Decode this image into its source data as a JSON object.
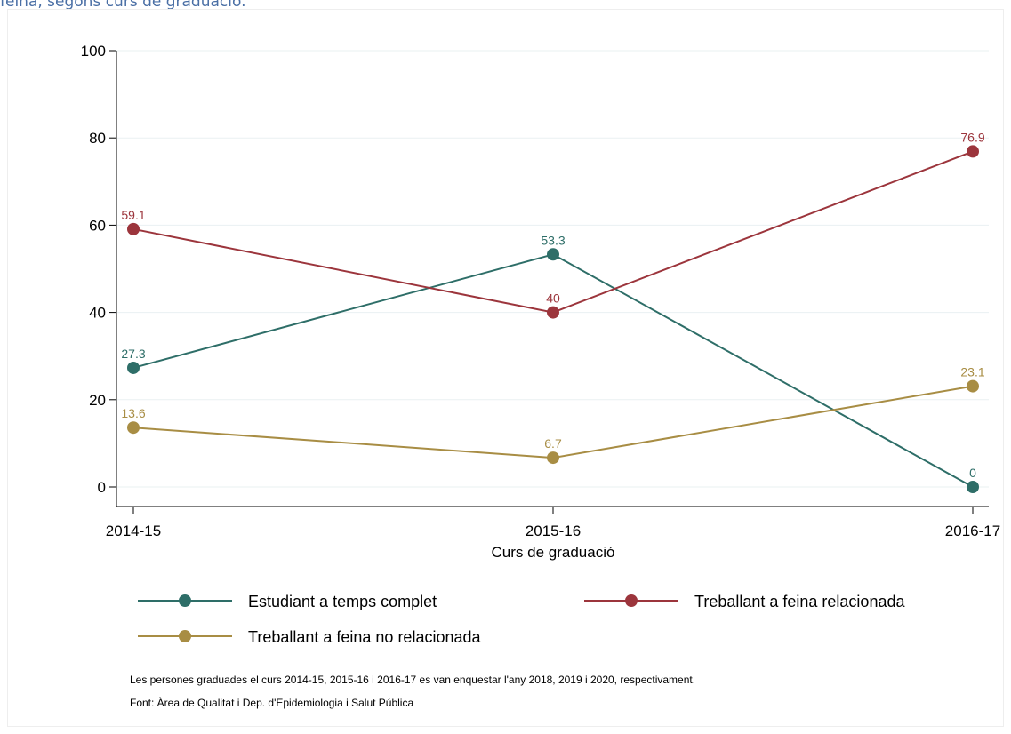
{
  "caption": "feina, segons curs de graduació.",
  "chart_data": {
    "type": "line",
    "categories": [
      "2014-15",
      "2015-16",
      "2016-17"
    ],
    "xlabel": "Curs de graduació",
    "ylabel": "",
    "ylim": [
      0,
      100
    ],
    "yticks": [
      0,
      20,
      40,
      60,
      80,
      100
    ],
    "grid": true,
    "legend_position": "bottom",
    "series": [
      {
        "name": "Estudiant a temps complet",
        "values": [
          27.3,
          53.3,
          0
        ],
        "labels": [
          "27.3",
          "53.3",
          "0"
        ],
        "color": "#2e6e68"
      },
      {
        "name": "Treballant a feina relacionada",
        "values": [
          59.1,
          40,
          76.9
        ],
        "labels": [
          "59.1",
          "40",
          "76.9"
        ],
        "color": "#9c353c"
      },
      {
        "name": "Treballant a feina no relacionada",
        "values": [
          13.6,
          6.7,
          23.1
        ],
        "labels": [
          "13.6",
          "6.7",
          "23.1"
        ],
        "color": "#a88d44"
      }
    ]
  },
  "notes": {
    "line1": "Les persones graduades el curs 2014-15, 2015-16 i 2016-17 es van enquestar l'any 2018, 2019 i 2020, respectivament.",
    "line2": "Font: Àrea de Qualitat i Dep. d'Epidemiologia i Salut Pública"
  }
}
